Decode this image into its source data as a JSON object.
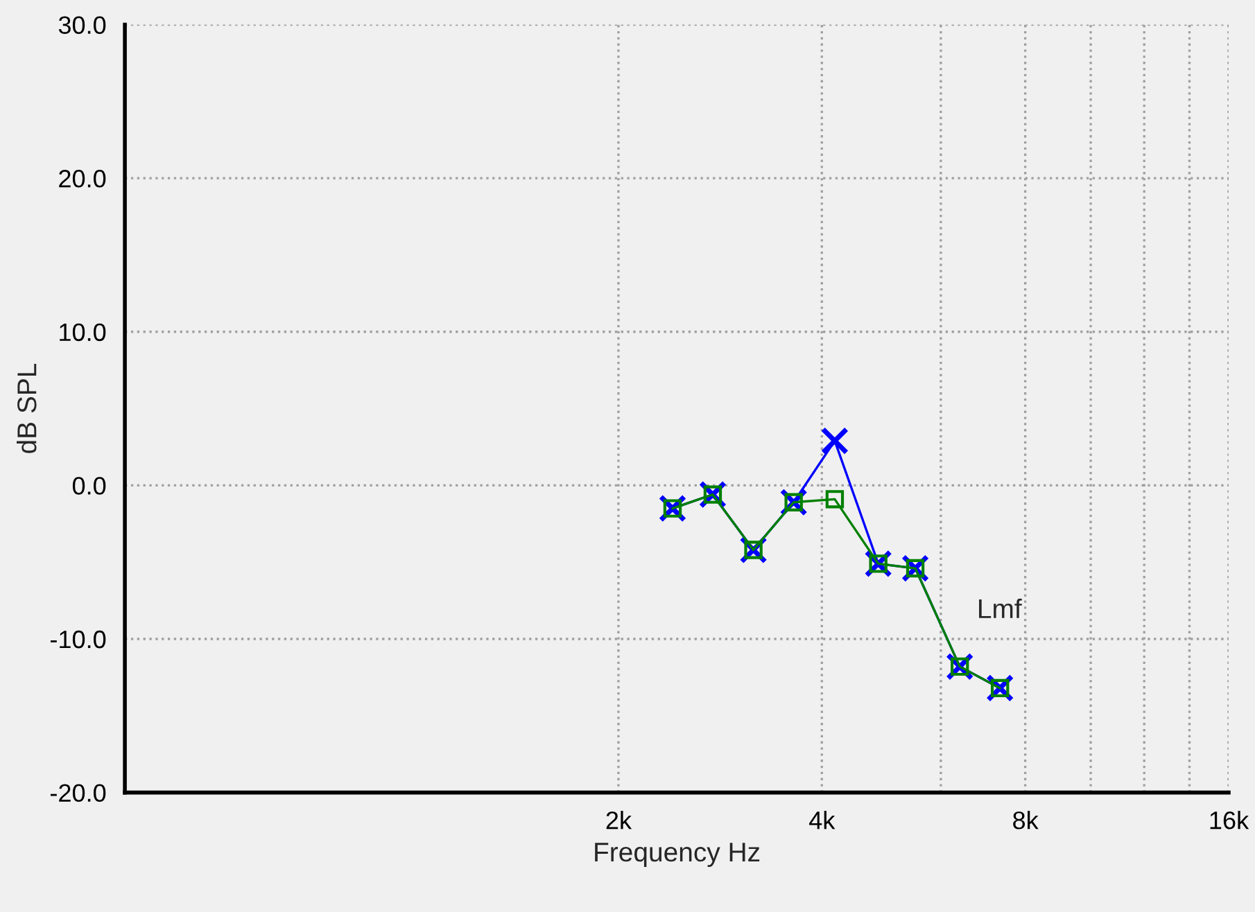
{
  "chart_data": {
    "type": "line",
    "xlabel": "Frequency Hz",
    "ylabel": "dB SPL",
    "x": [
      2405,
      2758,
      3168,
      3634,
      4180,
      4848,
      5500,
      6400,
      7340
    ],
    "series": [
      {
        "color": "#0000ff",
        "marker": "cross",
        "values": [
          -1.5,
          -0.6,
          -4.2,
          -1.1,
          2.9,
          -5.1,
          -5.4,
          -11.8,
          -13.2
        ]
      },
      {
        "color": "#008000",
        "marker": "square",
        "values": [
          -1.5,
          -0.6,
          -4.2,
          -1.1,
          -0.9,
          -5.1,
          -5.4,
          -11.8,
          -13.2
        ]
      }
    ],
    "log": "x",
    "xlim": [
      372,
      16000
    ],
    "xticks": [
      {
        "value": 2000,
        "label": "2k"
      },
      {
        "value": 4000,
        "label": "4k"
      },
      {
        "value": 6000,
        "label": null
      },
      {
        "value": 8000,
        "label": "8k"
      },
      {
        "value": 10000,
        "label": null
      },
      {
        "value": 12000,
        "label": null
      },
      {
        "value": 14000,
        "label": null
      },
      {
        "value": 16000,
        "label": "16k"
      }
    ],
    "ylim": [
      -20,
      30
    ],
    "yticks": [
      {
        "value": -20,
        "label": "-20.0"
      },
      {
        "value": -10,
        "label": "-10.0"
      },
      {
        "value": 0,
        "label": "0.0"
      },
      {
        "value": 10,
        "label": "10.0"
      },
      {
        "value": 20,
        "label": "20.0"
      },
      {
        "value": 30,
        "label": "30.0"
      }
    ],
    "grid": true,
    "line_style": "solid",
    "annotations": [
      "Lmf"
    ]
  }
}
